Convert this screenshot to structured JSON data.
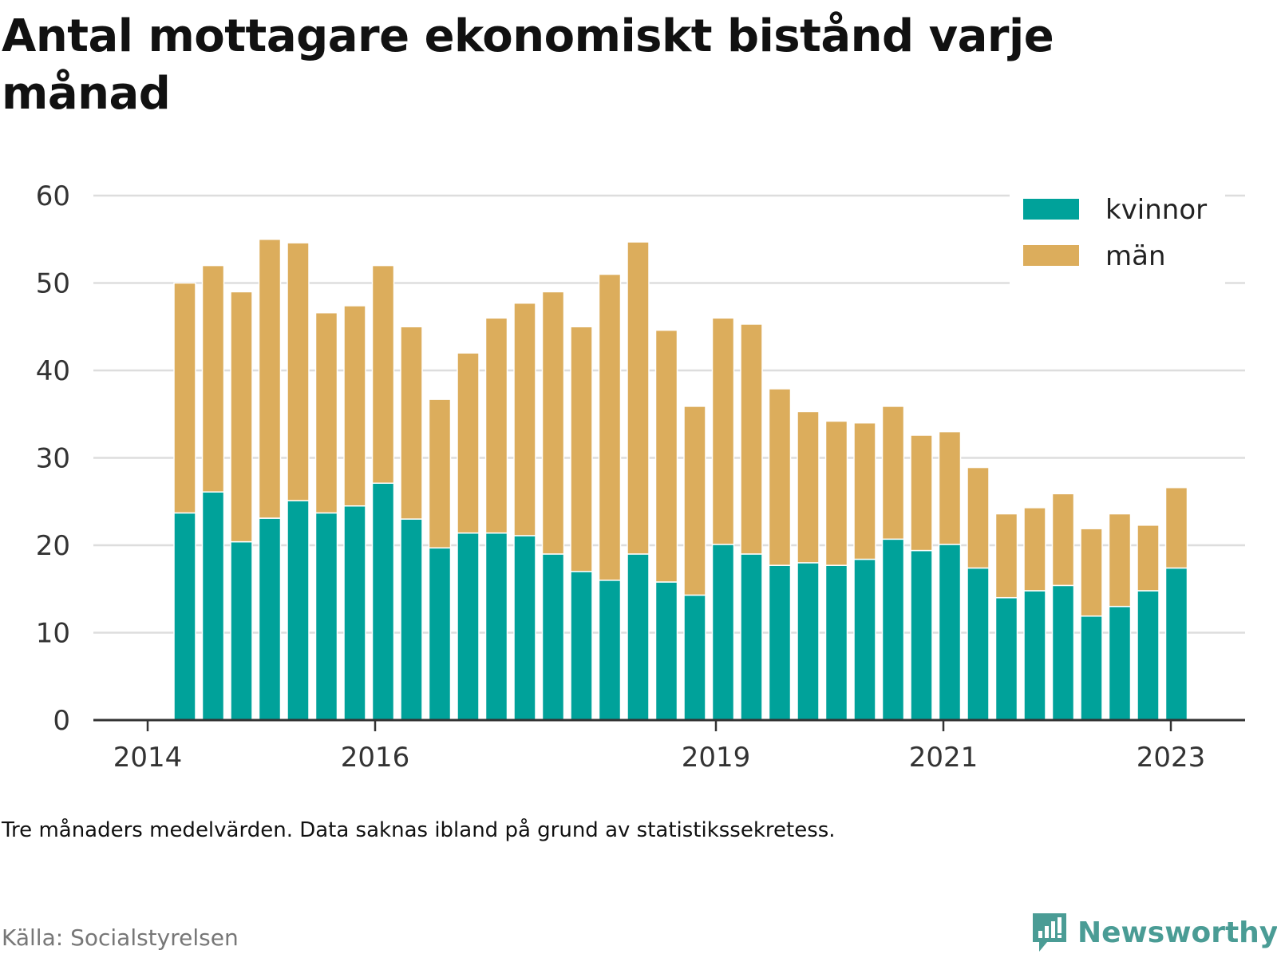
{
  "title": "Antal mottagare ekonomiskt bistånd varje månad",
  "note": "Tre månaders medelvärden. Data saknas ibland på grund av statistikssekretess.",
  "source": "Källa: Socialstyrelsen",
  "brand": {
    "name": "Newsworthy",
    "icon": "newsworthy-logo-icon"
  },
  "colors": {
    "kvinnor": "#00a29a",
    "man": "#dcad5c",
    "grid": "#dddddd",
    "axis": "#333333"
  },
  "chart_data": {
    "type": "bar",
    "stacked": true,
    "ylim": [
      0,
      60
    ],
    "yticks": [
      0,
      10,
      20,
      30,
      40,
      50,
      60
    ],
    "x_tick_labels": [
      "2014",
      "2016",
      "2019",
      "2021",
      "2023"
    ],
    "grid": true,
    "legend_position": "top-right",
    "categories": [
      "2014-Q2",
      "2014-Q3",
      "2014-Q4",
      "2015-Q1",
      "2015-Q2",
      "2015-Q3",
      "2015-Q4",
      "2016-Q1",
      "2016-Q2",
      "2016-Q3",
      "2016-Q4",
      "2017-Q1",
      "2017-Q2",
      "2017-Q3",
      "2017-Q4",
      "2018-Q1",
      "2018-Q2",
      "2018-Q3",
      "2018-Q4",
      "2019-Q1",
      "2019-Q2",
      "2019-Q3",
      "2019-Q4",
      "2020-Q1",
      "2020-Q2",
      "2020-Q3",
      "2020-Q4",
      "2021-Q1",
      "2021-Q2",
      "2021-Q3",
      "2021-Q4",
      "2022-Q1",
      "2022-Q2",
      "2022-Q3",
      "2022-Q4",
      "2023-Q1"
    ],
    "series": [
      {
        "name": "kvinnor",
        "color": "#00a29a",
        "values": [
          23.7,
          26.1,
          20.4,
          23.1,
          25.1,
          23.7,
          24.5,
          27.1,
          23.0,
          19.7,
          21.4,
          21.4,
          21.1,
          19.0,
          17.0,
          16.0,
          19.0,
          15.8,
          14.3,
          20.1,
          19.0,
          17.7,
          18.0,
          17.7,
          18.4,
          20.7,
          19.4,
          20.1,
          17.4,
          14.0,
          14.8,
          15.4,
          11.9,
          13.0,
          14.8,
          17.4
        ]
      },
      {
        "name": "män",
        "color": "#dcad5c",
        "values": [
          26.3,
          25.9,
          28.6,
          31.9,
          29.5,
          22.9,
          22.9,
          24.9,
          22.0,
          17.0,
          20.6,
          24.6,
          26.6,
          30.0,
          28.0,
          35.0,
          35.7,
          28.8,
          21.6,
          25.9,
          26.3,
          20.2,
          17.3,
          16.5,
          15.6,
          15.2,
          13.2,
          12.9,
          11.5,
          9.6,
          9.5,
          10.5,
          10.0,
          10.6,
          7.5,
          9.2
        ]
      }
    ]
  }
}
